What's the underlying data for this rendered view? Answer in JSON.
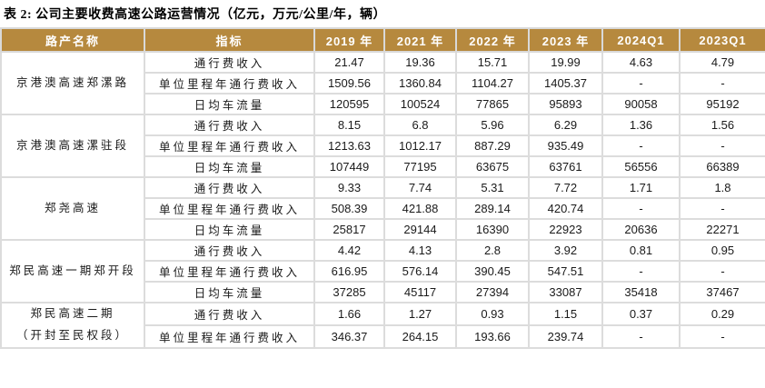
{
  "title": "表 2: 公司主要收费高速公路运营情况（亿元，万元/公里/年，辆）",
  "colors": {
    "header_bg": "#B6893E",
    "header_text": "#FFFFFF",
    "grid_border": "#DCDCDC",
    "body_text": "#1A1A1A"
  },
  "table": {
    "col1_header": "路产名称",
    "col2_header": "指标",
    "year_headers": [
      "2019 年",
      "2021 年",
      "2022 年",
      "2023 年",
      "2024Q1",
      "2023Q1"
    ],
    "sections": [
      {
        "name_lines": [
          "京港澳高速郑漯路"
        ],
        "rows": [
          {
            "metric": "通行费收入",
            "values": [
              "21.47",
              "19.36",
              "15.71",
              "19.99",
              "4.63",
              "4.79"
            ]
          },
          {
            "metric": "单位里程年通行费收入",
            "values": [
              "1509.56",
              "1360.84",
              "1104.27",
              "1405.37",
              "-",
              "-"
            ]
          },
          {
            "metric": "日均车流量",
            "values": [
              "120595",
              "100524",
              "77865",
              "95893",
              "90058",
              "95192"
            ]
          }
        ]
      },
      {
        "name_lines": [
          "京港澳高速漯驻段"
        ],
        "rows": [
          {
            "metric": "通行费收入",
            "values": [
              "8.15",
              "6.8",
              "5.96",
              "6.29",
              "1.36",
              "1.56"
            ]
          },
          {
            "metric": "单位里程年通行费收入",
            "values": [
              "1213.63",
              "1012.17",
              "887.29",
              "935.49",
              "-",
              "-"
            ]
          },
          {
            "metric": "日均车流量",
            "values": [
              "107449",
              "77195",
              "63675",
              "63761",
              "56556",
              "66389"
            ]
          }
        ]
      },
      {
        "name_lines": [
          "郑尧高速"
        ],
        "rows": [
          {
            "metric": "通行费收入",
            "values": [
              "9.33",
              "7.74",
              "5.31",
              "7.72",
              "1.71",
              "1.8"
            ]
          },
          {
            "metric": "单位里程年通行费收入",
            "values": [
              "508.39",
              "421.88",
              "289.14",
              "420.74",
              "-",
              "-"
            ]
          },
          {
            "metric": "日均车流量",
            "values": [
              "25817",
              "29144",
              "16390",
              "22923",
              "20636",
              "22271"
            ]
          }
        ]
      },
      {
        "name_lines": [
          "郑民高速一期郑开段"
        ],
        "rows": [
          {
            "metric": "通行费收入",
            "values": [
              "4.42",
              "4.13",
              "2.8",
              "3.92",
              "0.81",
              "0.95"
            ]
          },
          {
            "metric": "单位里程年通行费收入",
            "values": [
              "616.95",
              "576.14",
              "390.45",
              "547.51",
              "-",
              "-"
            ]
          },
          {
            "metric": "日均车流量",
            "values": [
              "37285",
              "45117",
              "27394",
              "33087",
              "35418",
              "37467"
            ]
          }
        ]
      },
      {
        "name_lines": [
          "郑民高速二期",
          "（开封至民权段）"
        ],
        "rows": [
          {
            "metric": "通行费收入",
            "values": [
              "1.66",
              "1.27",
              "0.93",
              "1.15",
              "0.37",
              "0.29"
            ]
          },
          {
            "metric": "单位里程年通行费收入",
            "values": [
              "346.37",
              "264.15",
              "193.66",
              "239.74",
              "-",
              "-"
            ]
          }
        ]
      }
    ]
  }
}
